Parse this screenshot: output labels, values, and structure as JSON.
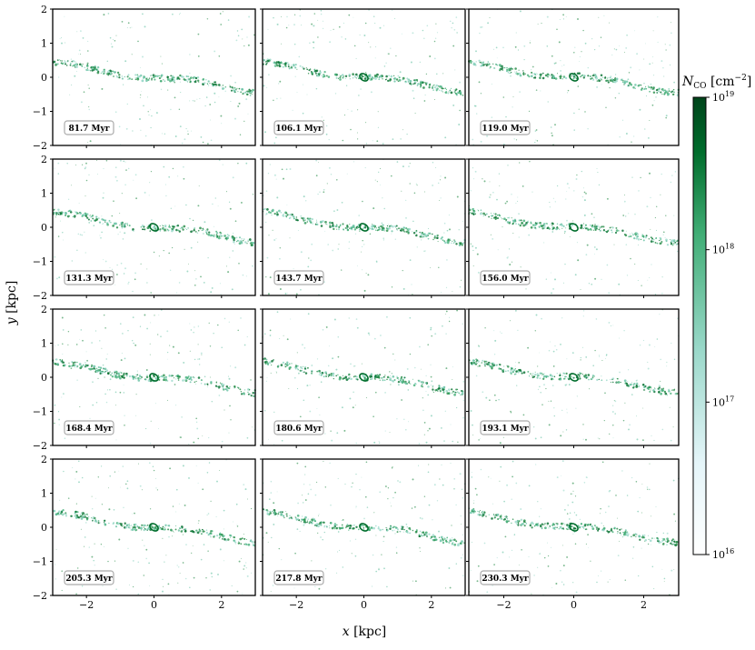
{
  "chart_data": {
    "type": "heatmap",
    "grid": {
      "rows": 4,
      "cols": 3
    },
    "xlabel": {
      "var": "x",
      "unit": "[kpc]"
    },
    "ylabel": {
      "var": "y",
      "unit": "[kpc]"
    },
    "xlim": [
      -3,
      3
    ],
    "ylim": [
      -2,
      2
    ],
    "xticks": [
      -2,
      0,
      2
    ],
    "xtick_labels": [
      "−2",
      "0",
      "2"
    ],
    "yticks": [
      -2,
      -1,
      0,
      1,
      2
    ],
    "ytick_labels": [
      "−2",
      "−1",
      "0",
      "1",
      "2"
    ],
    "panels": [
      {
        "time": "81.7 Myr"
      },
      {
        "time": "106.1 Myr"
      },
      {
        "time": "119.0 Myr"
      },
      {
        "time": "131.3 Myr"
      },
      {
        "time": "143.7 Myr"
      },
      {
        "time": "156.0 Myr"
      },
      {
        "time": "168.4 Myr"
      },
      {
        "time": "180.6 Myr"
      },
      {
        "time": "193.1 Myr"
      },
      {
        "time": "205.3 Myr"
      },
      {
        "time": "217.8 Myr"
      },
      {
        "time": "230.3 Myr"
      }
    ],
    "colorbar": {
      "label_var": "N",
      "label_sub": "CO",
      "label_unit": "[cm",
      "label_unit_exp": "−2",
      "label_unit_close": "]",
      "scale": "log",
      "range": [
        1e+16,
        1e+19
      ],
      "ticks": [
        16,
        17,
        18,
        19
      ],
      "tick_base": "10",
      "colors": [
        "#ffffff",
        "#e5f5f9",
        "#99d8c9",
        "#41ae76",
        "#006d2c",
        "#00441b"
      ]
    }
  }
}
